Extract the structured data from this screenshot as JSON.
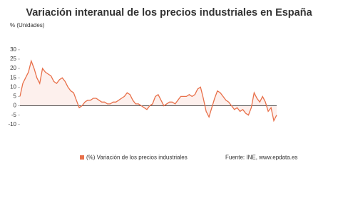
{
  "chart_data": {
    "type": "line",
    "title": "Variación interanual de los precios industriales en España",
    "subtitle": "% (Unidades)",
    "source": "Fuente: INE, www.epdata.es",
    "series": [
      {
        "name": "(%) Variación de los precios industriales",
        "color": "#e8704a",
        "values": [
          5,
          12,
          15,
          18,
          24,
          20,
          15,
          12,
          20,
          18,
          17,
          16,
          13,
          12,
          14,
          15,
          13,
          10,
          8,
          7,
          3,
          -1,
          0,
          2,
          3,
          3,
          4,
          4,
          3,
          2,
          2,
          1,
          1,
          2,
          2,
          3,
          4,
          5,
          7,
          6,
          3,
          1,
          1,
          0,
          -1,
          -2,
          0,
          1,
          5,
          6,
          3,
          0,
          1,
          2,
          2,
          1,
          3,
          5,
          5,
          5,
          6,
          5,
          6,
          9,
          10,
          4,
          -3,
          -6,
          -1,
          4,
          8,
          7,
          5,
          3,
          2,
          0,
          -2,
          -1,
          -3,
          -2,
          -4,
          -5,
          -1,
          7,
          4,
          2,
          5,
          2,
          -3,
          -1,
          -8,
          -5
        ]
      }
    ],
    "ylim": [
      -12,
      33
    ],
    "yticks": [
      -10,
      -5,
      0,
      5,
      10,
      15,
      20,
      25,
      30
    ],
    "area": true
  }
}
